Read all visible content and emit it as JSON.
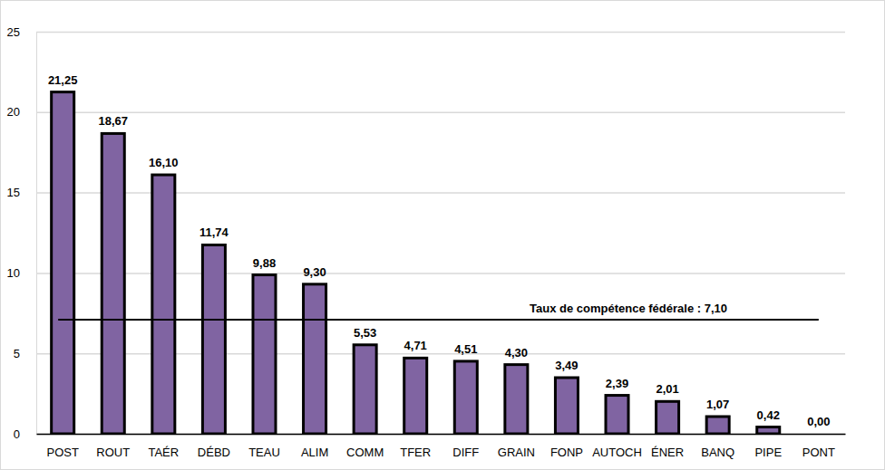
{
  "chart_data": {
    "type": "bar",
    "categories": [
      "POST",
      "ROUT",
      "TAÉR",
      "DÉBD",
      "TEAU",
      "ALIM",
      "COMM",
      "TFER",
      "DIFF",
      "GRAIN",
      "FONP",
      "AUTOCH",
      "ÉNER",
      "BANQ",
      "PIPE",
      "PONT"
    ],
    "values": [
      21.25,
      18.67,
      16.1,
      11.74,
      9.88,
      9.3,
      5.53,
      4.71,
      4.51,
      4.3,
      3.49,
      2.39,
      2.01,
      1.07,
      0.42,
      0.0
    ],
    "value_labels": [
      "21,25",
      "18,67",
      "16,10",
      "11,74",
      "9,88",
      "9,30",
      "5,53",
      "4,71",
      "4,51",
      "4,30",
      "3,49",
      "2,39",
      "2,01",
      "1,07",
      "0,42",
      "0,00"
    ],
    "color": "#8064a2",
    "ylim": [
      0,
      25
    ],
    "yticks": [
      0,
      5,
      10,
      15,
      20,
      25
    ],
    "grid": true,
    "data_labels": true,
    "annotations": [
      {
        "text": "Taux de compétence fédérale : 7,10",
        "y": 7.1
      }
    ]
  }
}
